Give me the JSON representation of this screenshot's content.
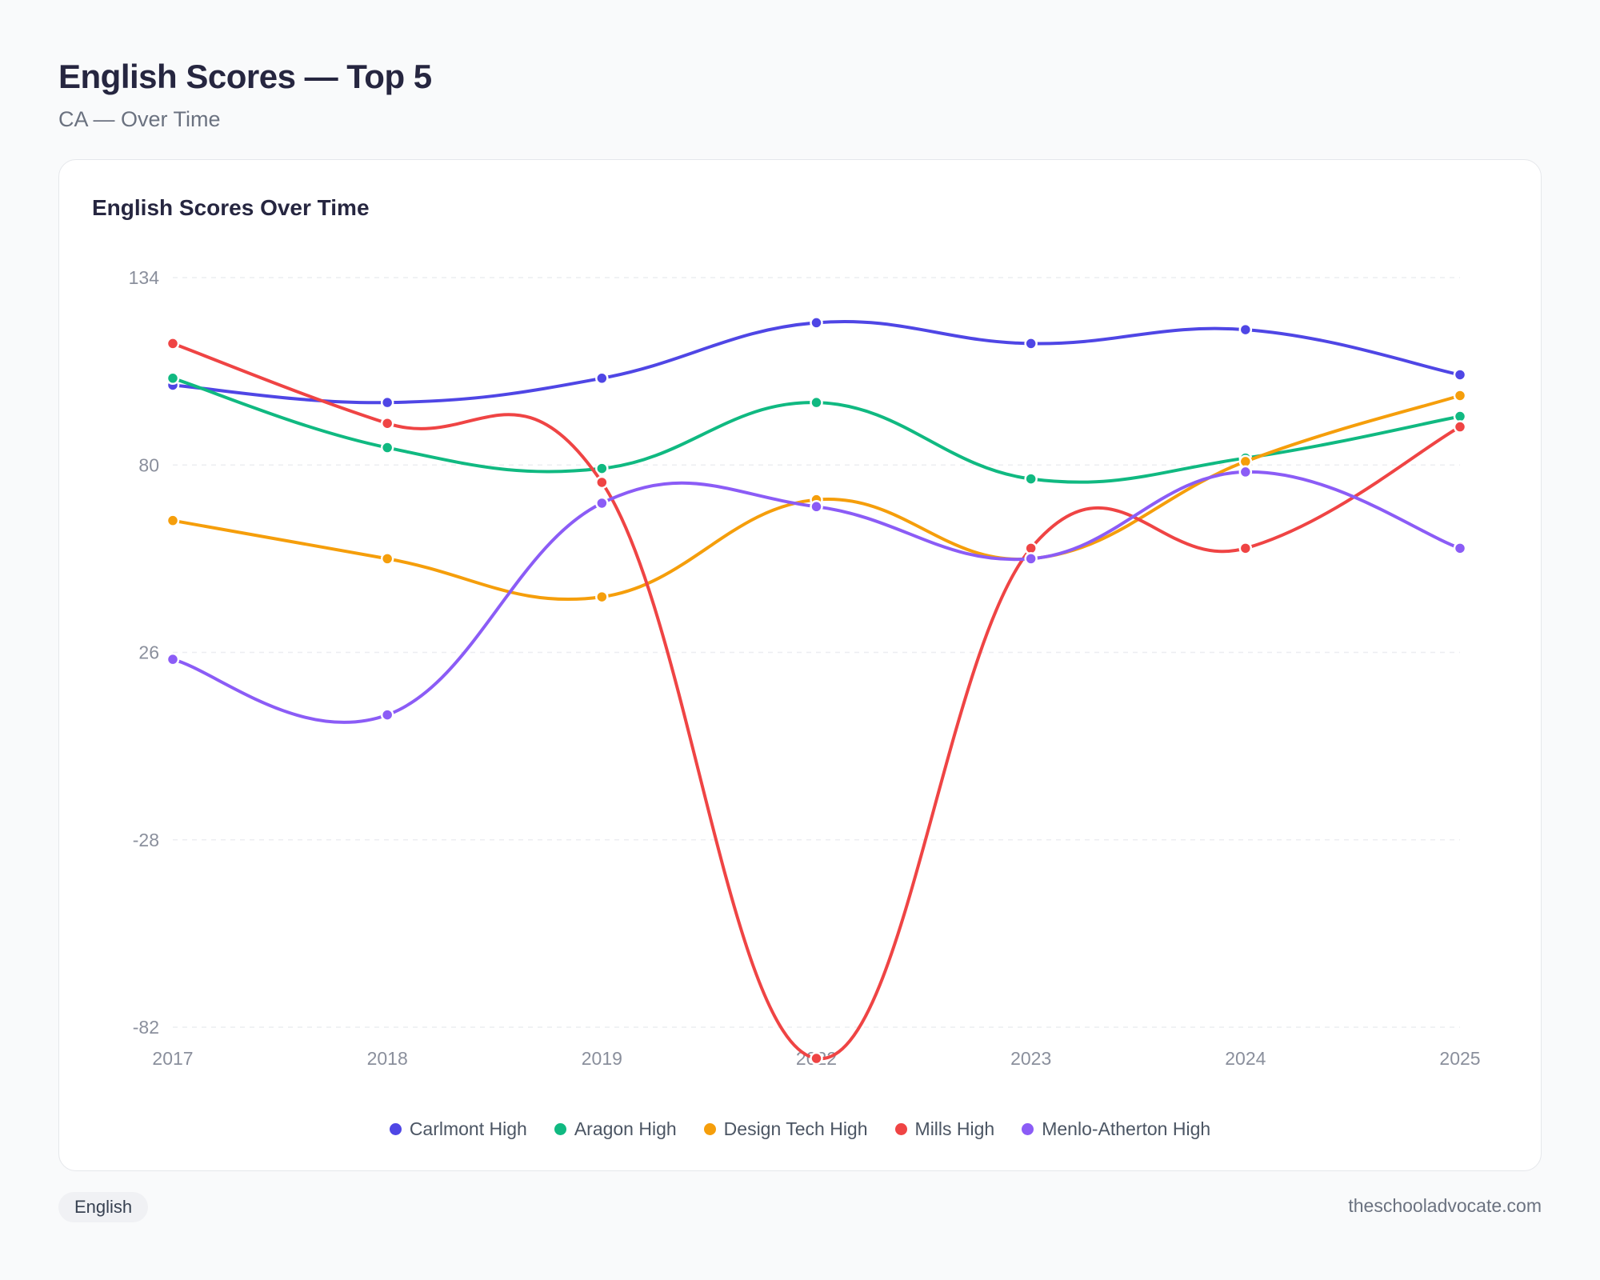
{
  "header": {
    "title": "English Scores — Top 5",
    "subtitle": "CA — Over Time"
  },
  "card": {
    "title": "English Scores Over Time"
  },
  "footer": {
    "tag": "English",
    "site": "theschooladvocate.com"
  },
  "chart_data": {
    "type": "line",
    "title": "English Scores Over Time",
    "x": [
      "2017",
      "2018",
      "2019",
      "2022",
      "2023",
      "2024",
      "2025"
    ],
    "yticks": [
      134,
      80,
      26,
      -28,
      -82
    ],
    "ylim": [
      -82,
      134
    ],
    "grid": true,
    "legend": "bottom-center",
    "series": [
      {
        "name": "Carlmont High",
        "color": "#4f46e5",
        "values": [
          103,
          98,
          105,
          121,
          115,
          119,
          106
        ]
      },
      {
        "name": "Aragon High",
        "color": "#10b981",
        "values": [
          105,
          85,
          79,
          98,
          76,
          82,
          94
        ]
      },
      {
        "name": "Design Tech High",
        "color": "#f59e0b",
        "values": [
          64,
          53,
          42,
          70,
          53,
          81,
          100
        ]
      },
      {
        "name": "Mills High",
        "color": "#ef4444",
        "values": [
          115,
          92,
          75,
          -91,
          56,
          56,
          91
        ]
      },
      {
        "name": "Menlo-Atherton High",
        "color": "#8b5cf6",
        "values": [
          24,
          8,
          69,
          68,
          53,
          78,
          56
        ]
      }
    ]
  }
}
